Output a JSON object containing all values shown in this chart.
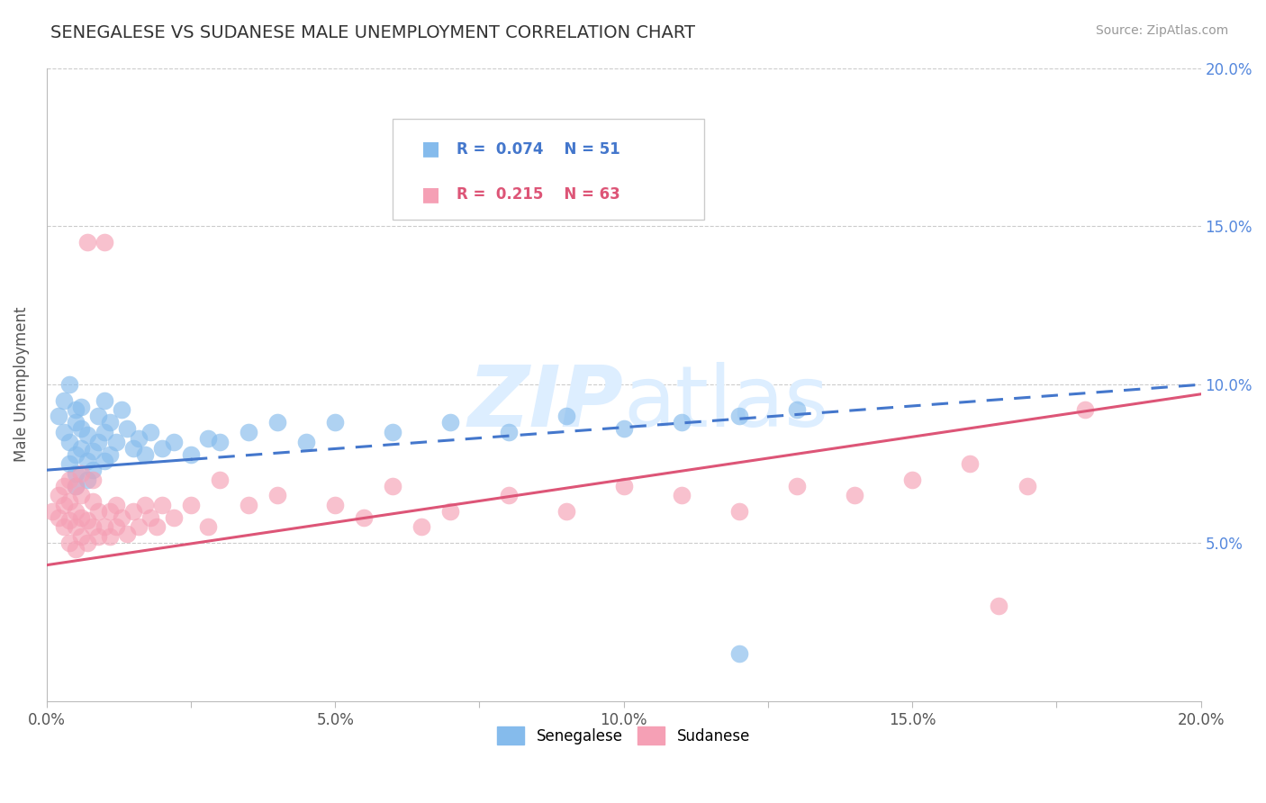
{
  "title": "SENEGALESE VS SUDANESE MALE UNEMPLOYMENT CORRELATION CHART",
  "source_text": "Source: ZipAtlas.com",
  "ylabel": "Male Unemployment",
  "xlim": [
    0.0,
    0.2
  ],
  "ylim": [
    0.0,
    0.2
  ],
  "ytick_vals": [
    0.05,
    0.1,
    0.15,
    0.2
  ],
  "ytick_labs": [
    "5.0%",
    "10.0%",
    "15.0%",
    "20.0%"
  ],
  "xtick_vals": [
    0.0,
    0.025,
    0.05,
    0.075,
    0.1,
    0.125,
    0.15,
    0.175,
    0.2
  ],
  "xtick_labs": [
    "0.0%",
    "",
    "5.0%",
    "",
    "10.0%",
    "",
    "15.0%",
    "",
    "20.0%"
  ],
  "senegalese_R": 0.074,
  "senegalese_N": 51,
  "sudanese_R": 0.215,
  "sudanese_N": 63,
  "senegalese_color": "#85BBEC",
  "sudanese_color": "#F5A0B5",
  "senegalese_line_color": "#4477CC",
  "sudanese_line_color": "#DD5577",
  "title_color": "#333333",
  "grid_color": "#CCCCCC",
  "legend_text_color_blue": "#4477CC",
  "legend_text_color_pink": "#DD5577",
  "watermark_color": "#DDEEFF",
  "senegalese_x": [
    0.002,
    0.003,
    0.003,
    0.004,
    0.004,
    0.004,
    0.005,
    0.005,
    0.005,
    0.005,
    0.005,
    0.006,
    0.006,
    0.006,
    0.007,
    0.007,
    0.007,
    0.008,
    0.008,
    0.009,
    0.009,
    0.01,
    0.01,
    0.01,
    0.011,
    0.011,
    0.012,
    0.013,
    0.014,
    0.015,
    0.016,
    0.017,
    0.018,
    0.02,
    0.022,
    0.025,
    0.028,
    0.03,
    0.035,
    0.04,
    0.045,
    0.05,
    0.06,
    0.07,
    0.08,
    0.09,
    0.1,
    0.11,
    0.12,
    0.13,
    0.12
  ],
  "senegalese_y": [
    0.09,
    0.085,
    0.095,
    0.075,
    0.082,
    0.1,
    0.072,
    0.078,
    0.088,
    0.092,
    0.068,
    0.08,
    0.086,
    0.093,
    0.07,
    0.076,
    0.084,
    0.073,
    0.079,
    0.082,
    0.09,
    0.076,
    0.085,
    0.095,
    0.078,
    0.088,
    0.082,
    0.092,
    0.086,
    0.08,
    0.083,
    0.078,
    0.085,
    0.08,
    0.082,
    0.078,
    0.083,
    0.082,
    0.085,
    0.088,
    0.082,
    0.088,
    0.085,
    0.088,
    0.085,
    0.09,
    0.086,
    0.088,
    0.09,
    0.092,
    0.015
  ],
  "sudanese_x": [
    0.001,
    0.002,
    0.002,
    0.003,
    0.003,
    0.003,
    0.004,
    0.004,
    0.004,
    0.004,
    0.005,
    0.005,
    0.005,
    0.005,
    0.006,
    0.006,
    0.006,
    0.006,
    0.007,
    0.007,
    0.007,
    0.008,
    0.008,
    0.008,
    0.009,
    0.009,
    0.01,
    0.01,
    0.011,
    0.011,
    0.012,
    0.012,
    0.013,
    0.014,
    0.015,
    0.016,
    0.017,
    0.018,
    0.019,
    0.02,
    0.022,
    0.025,
    0.028,
    0.03,
    0.035,
    0.04,
    0.05,
    0.055,
    0.06,
    0.065,
    0.07,
    0.08,
    0.09,
    0.1,
    0.11,
    0.12,
    0.13,
    0.14,
    0.15,
    0.16,
    0.17,
    0.18,
    0.165
  ],
  "sudanese_y": [
    0.06,
    0.058,
    0.065,
    0.055,
    0.062,
    0.068,
    0.05,
    0.057,
    0.063,
    0.07,
    0.048,
    0.055,
    0.06,
    0.068,
    0.052,
    0.058,
    0.065,
    0.072,
    0.05,
    0.057,
    0.145,
    0.055,
    0.063,
    0.07,
    0.052,
    0.06,
    0.055,
    0.145,
    0.052,
    0.06,
    0.055,
    0.062,
    0.058,
    0.053,
    0.06,
    0.055,
    0.062,
    0.058,
    0.055,
    0.062,
    0.058,
    0.062,
    0.055,
    0.07,
    0.062,
    0.065,
    0.062,
    0.058,
    0.068,
    0.055,
    0.06,
    0.065,
    0.06,
    0.068,
    0.065,
    0.06,
    0.068,
    0.065,
    0.07,
    0.075,
    0.068,
    0.092,
    0.03
  ],
  "sen_line_x0": 0.0,
  "sen_line_y0": 0.073,
  "sen_line_x1": 0.2,
  "sen_line_y1": 0.1,
  "sud_line_x0": 0.0,
  "sud_line_y0": 0.043,
  "sud_line_x1": 0.2,
  "sud_line_y1": 0.097
}
